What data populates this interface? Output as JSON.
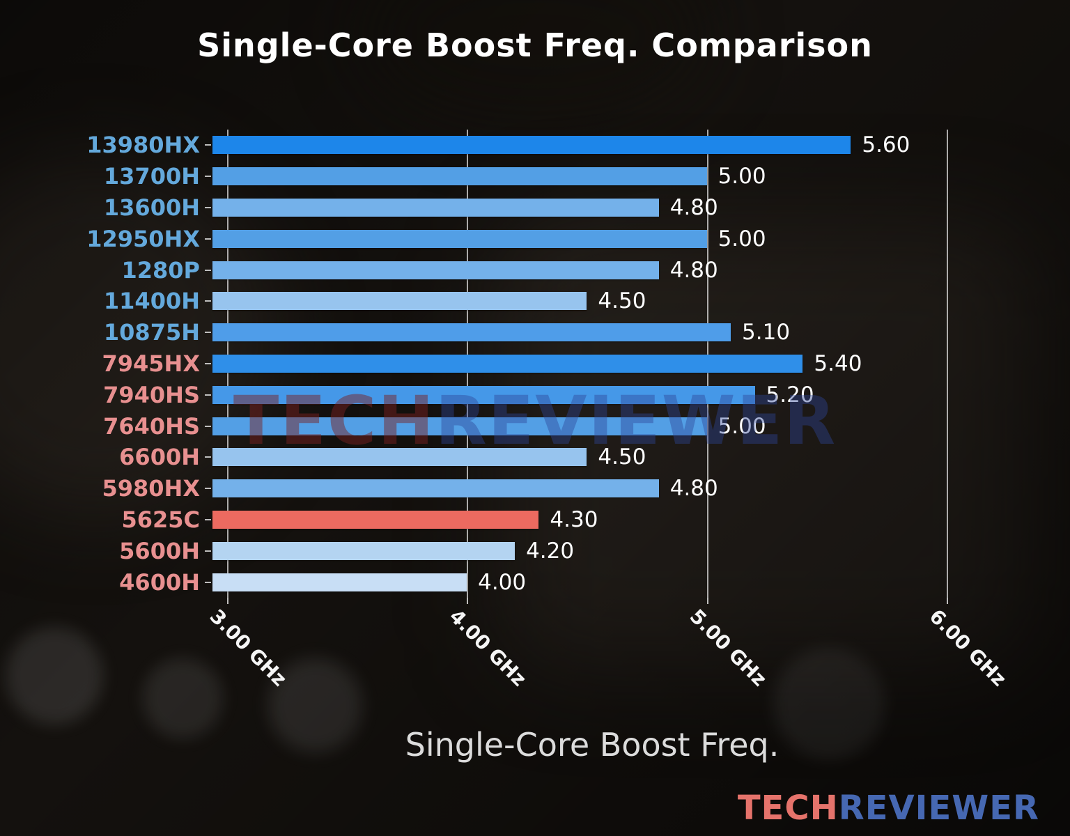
{
  "title": "Single-Core Boost Freq. Comparison",
  "watermark": {
    "part1": "TECH",
    "part2": "REVIEWER"
  },
  "logo": {
    "part1": "TECH",
    "part2": "REVIEWER"
  },
  "chart_data": {
    "type": "bar",
    "orientation": "horizontal",
    "title": "Single-Core Boost Freq. Comparison",
    "xlabel": "Single-Core Boost Freq.",
    "ylabel": "",
    "unit": "GHz",
    "axis_min": 2.94,
    "axis_max": 6.38,
    "grid": true,
    "legend": "none",
    "x_ticks": [
      {
        "value": 3.0,
        "label": "3.00 GHz"
      },
      {
        "value": 4.0,
        "label": "4.00 GHz"
      },
      {
        "value": 5.0,
        "label": "5.00 GHz"
      },
      {
        "value": 6.0,
        "label": "6.00 GHz"
      }
    ],
    "highlight_item": "5625C",
    "highlight_color": "#ec6a60",
    "intel_label_color": "#64a9dc",
    "amd_label_color": "#e89090",
    "items": [
      {
        "label": "13980HX",
        "value": 5.6,
        "value_label": "5.60",
        "brand": "intel",
        "bar_color": "#1d86ea",
        "label_color": "#64a9dc"
      },
      {
        "label": "13700H",
        "value": 5.0,
        "value_label": "5.00",
        "brand": "intel",
        "bar_color": "#539fe5",
        "label_color": "#64a9dc"
      },
      {
        "label": "13600H",
        "value": 4.8,
        "value_label": "4.80",
        "brand": "intel",
        "bar_color": "#74b1ea",
        "label_color": "#64a9dc"
      },
      {
        "label": "12950HX",
        "value": 5.0,
        "value_label": "5.00",
        "brand": "intel",
        "bar_color": "#539fe5",
        "label_color": "#64a9dc"
      },
      {
        "label": "1280P",
        "value": 4.8,
        "value_label": "4.80",
        "brand": "intel",
        "bar_color": "#74b1ea",
        "label_color": "#64a9dc"
      },
      {
        "label": "11400H",
        "value": 4.5,
        "value_label": "4.50",
        "brand": "intel",
        "bar_color": "#97c4ee",
        "label_color": "#64a9dc"
      },
      {
        "label": "10875H",
        "value": 5.1,
        "value_label": "5.10",
        "brand": "intel",
        "bar_color": "#4f9de9",
        "label_color": "#64a9dc"
      },
      {
        "label": "7945HX",
        "value": 5.4,
        "value_label": "5.40",
        "brand": "amd",
        "bar_color": "#2f8fe9",
        "label_color": "#e89090"
      },
      {
        "label": "7940HS",
        "value": 5.2,
        "value_label": "5.20",
        "brand": "amd",
        "bar_color": "#4598e8",
        "label_color": "#e89090"
      },
      {
        "label": "7640HS",
        "value": 5.0,
        "value_label": "5.00",
        "brand": "amd",
        "bar_color": "#539fe5",
        "label_color": "#e89090"
      },
      {
        "label": "6600H",
        "value": 4.5,
        "value_label": "4.50",
        "brand": "amd",
        "bar_color": "#97c4ee",
        "label_color": "#e89090"
      },
      {
        "label": "5980HX",
        "value": 4.8,
        "value_label": "4.80",
        "brand": "amd",
        "bar_color": "#74b1ea",
        "label_color": "#e89090"
      },
      {
        "label": "5625C",
        "value": 4.3,
        "value_label": "4.30",
        "brand": "amd",
        "bar_color": "#ec6a60",
        "label_color": "#e89090"
      },
      {
        "label": "5600H",
        "value": 4.2,
        "value_label": "4.20",
        "brand": "amd",
        "bar_color": "#b4d4f1",
        "label_color": "#e89090"
      },
      {
        "label": "4600H",
        "value": 4.0,
        "value_label": "4.00",
        "brand": "amd",
        "bar_color": "#c8def5",
        "label_color": "#e89090"
      }
    ]
  }
}
